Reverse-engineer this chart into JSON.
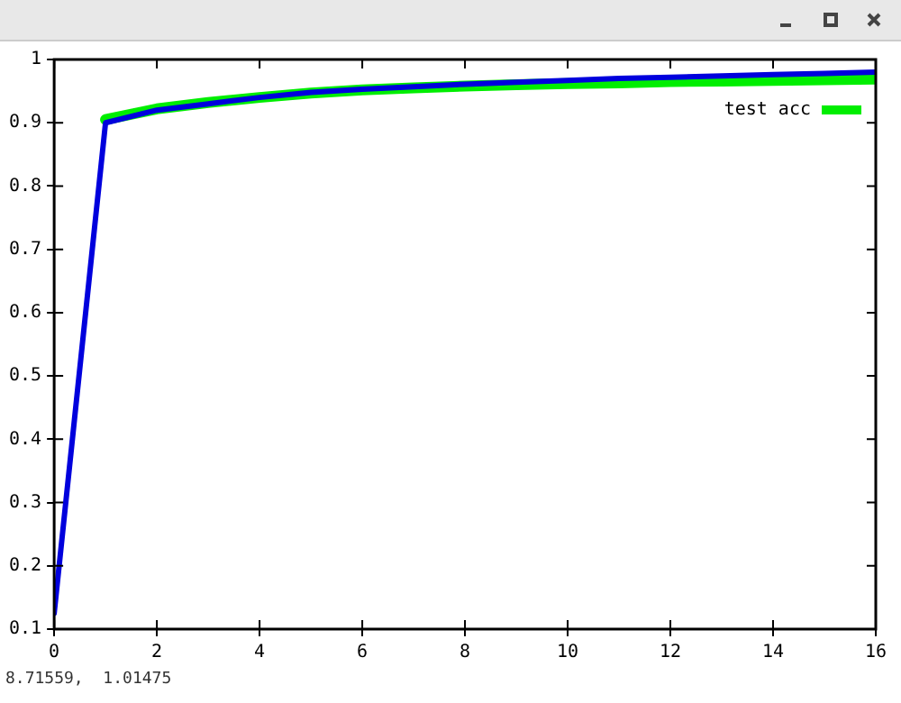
{
  "chart_data": {
    "type": "line",
    "xlim": [
      0,
      16
    ],
    "xticks": [
      0,
      2,
      4,
      6,
      8,
      10,
      12,
      14,
      16
    ],
    "ylim": [
      0.1,
      1
    ],
    "yticks": [
      0.1,
      0.2,
      0.3,
      0.4,
      0.5,
      0.6,
      0.7,
      0.8,
      0.9,
      1
    ],
    "grid": false,
    "legend": "top right",
    "marker": "none",
    "line_style": "solid",
    "series": [
      {
        "name": "test acc",
        "color": "#00ee00",
        "x": [
          1,
          2,
          3,
          4,
          5,
          6,
          7,
          8,
          9,
          10,
          11,
          12,
          13,
          14,
          15,
          16
        ],
        "values": [
          0.905,
          0.922,
          0.932,
          0.94,
          0.947,
          0.952,
          0.955,
          0.958,
          0.96,
          0.962,
          0.963,
          0.965,
          0.966,
          0.967,
          0.968,
          0.969
        ]
      },
      {
        "color": "#0000dd",
        "x": [
          0,
          1,
          2,
          3,
          4,
          5,
          6,
          7,
          8,
          9,
          10,
          11,
          12,
          13,
          14,
          15,
          16
        ],
        "values": [
          0.125,
          0.9,
          0.92,
          0.93,
          0.94,
          0.948,
          0.953,
          0.957,
          0.961,
          0.964,
          0.967,
          0.97,
          0.972,
          0.974,
          0.976,
          0.978,
          0.98
        ]
      }
    ],
    "annotations": [
      "8.71559,  1.01475"
    ]
  }
}
